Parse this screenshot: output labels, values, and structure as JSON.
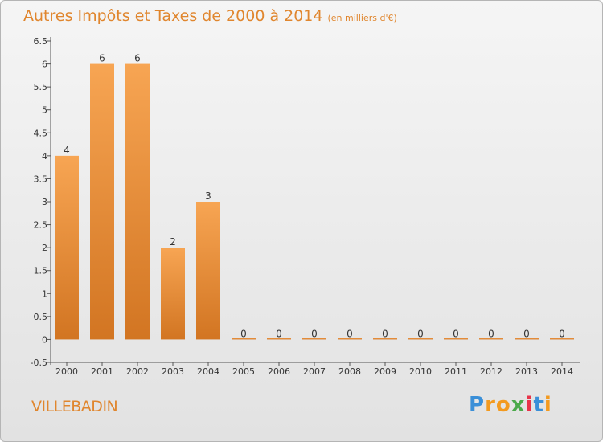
{
  "header": {
    "title": "Autres Impôts et Taxes de 2000 à 2014",
    "unit": "(en milliers d'€)"
  },
  "commune": "VILLEBADIN",
  "logo": {
    "text": "Proxiti",
    "letters": [
      "P",
      "r",
      "o",
      "x",
      "i",
      "t",
      "i"
    ]
  },
  "colors": {
    "accent": "#e0862e",
    "bar_light": "#f7a553",
    "bar_dark": "#d27522"
  },
  "chart_data": {
    "type": "bar",
    "title": "Autres Impôts et Taxes de 2000 à 2014",
    "ylabel": "(en milliers d'€)",
    "xlabel": "",
    "categories": [
      "2000",
      "2001",
      "2002",
      "2003",
      "2004",
      "2005",
      "2006",
      "2007",
      "2008",
      "2009",
      "2010",
      "2011",
      "2012",
      "2013",
      "2014"
    ],
    "values": [
      4,
      6,
      6,
      2,
      3,
      0,
      0,
      0,
      0,
      0,
      0,
      0,
      0,
      0,
      0
    ],
    "data_labels": [
      "4",
      "6",
      "6",
      "2",
      "3",
      "0",
      "0",
      "0",
      "0",
      "0",
      "0",
      "0",
      "0",
      "0",
      "0"
    ],
    "ylim": [
      -0.5,
      6.5
    ],
    "yticks": [
      -0.5,
      0,
      0.5,
      1,
      1.5,
      2,
      2.5,
      3,
      3.5,
      4,
      4.5,
      5,
      5.5,
      6,
      6.5
    ],
    "ytick_labels": [
      "-0.5",
      "0",
      "0.5",
      "1",
      "1.5",
      "2",
      "2.5",
      "3",
      "3.5",
      "4",
      "4.5",
      "5",
      "5.5",
      "6",
      "6.5"
    ],
    "grid": false
  }
}
